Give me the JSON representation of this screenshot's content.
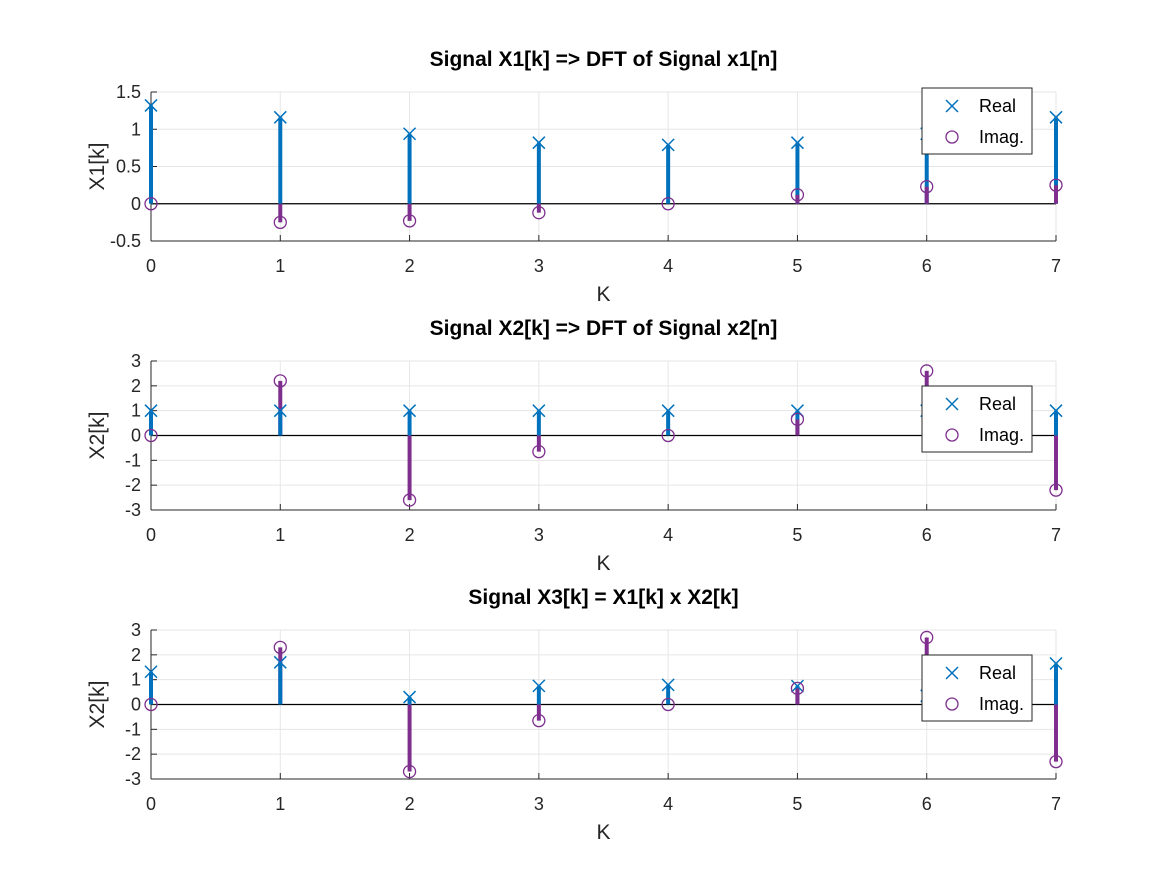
{
  "chart_data": [
    {
      "type": "stem",
      "title": "Signal X1[k] => DFT of Signal x1[n]",
      "xlabel": "K",
      "ylabel": "X1[k]",
      "xlim": [
        0,
        7
      ],
      "ylim": [
        -0.5,
        1.5
      ],
      "xticks": [
        "0",
        "1",
        "2",
        "3",
        "4",
        "5",
        "6",
        "7"
      ],
      "yticks": [
        "-0.5",
        "0",
        "0.5",
        "1",
        "1.5"
      ],
      "ytick_values": [
        -0.5,
        0,
        0.5,
        1,
        1.5
      ],
      "grid": true,
      "legend": {
        "location": "top-right",
        "entries": [
          "Real",
          "Imag."
        ]
      },
      "x": [
        0,
        1,
        2,
        3,
        4,
        5,
        6,
        7
      ],
      "series": [
        {
          "name": "Real",
          "marker": "x",
          "color": "#0072BD",
          "values": [
            1.32,
            1.16,
            0.94,
            0.82,
            0.79,
            0.82,
            0.94,
            1.16
          ]
        },
        {
          "name": "Imag.",
          "marker": "o",
          "color": "#7E2F8E",
          "values": [
            0.0,
            -0.25,
            -0.23,
            -0.12,
            0.0,
            0.12,
            0.23,
            0.25
          ]
        }
      ]
    },
    {
      "type": "stem",
      "title": "Signal X2[k] => DFT of Signal x2[n]",
      "xlabel": "K",
      "ylabel": "X2[k]",
      "xlim": [
        0,
        7
      ],
      "ylim": [
        -3,
        3
      ],
      "xticks": [
        "0",
        "1",
        "2",
        "3",
        "4",
        "5",
        "6",
        "7"
      ],
      "yticks": [
        "-3",
        "-2",
        "-1",
        "0",
        "1",
        "2",
        "3"
      ],
      "ytick_values": [
        -3,
        -2,
        -1,
        0,
        1,
        2,
        3
      ],
      "grid": true,
      "legend": {
        "location": "right",
        "entries": [
          "Real",
          "Imag."
        ]
      },
      "x": [
        0,
        1,
        2,
        3,
        4,
        5,
        6,
        7
      ],
      "series": [
        {
          "name": "Real",
          "marker": "x",
          "color": "#0072BD",
          "values": [
            1,
            1,
            1,
            1,
            1,
            1,
            1,
            1
          ]
        },
        {
          "name": "Imag.",
          "marker": "o",
          "color": "#7E2F8E",
          "values": [
            0,
            2.2,
            -2.6,
            -0.65,
            0,
            0.65,
            2.6,
            -2.2
          ]
        }
      ]
    },
    {
      "type": "stem",
      "title": "Signal X3[k] = X1[k] x X2[k]",
      "xlabel": "K",
      "ylabel": "X2[k]",
      "xlim": [
        0,
        7
      ],
      "ylim": [
        -3,
        3
      ],
      "xticks": [
        "0",
        "1",
        "2",
        "3",
        "4",
        "5",
        "6",
        "7"
      ],
      "yticks": [
        "-3",
        "-2",
        "-1",
        "0",
        "1",
        "2",
        "3"
      ],
      "ytick_values": [
        -3,
        -2,
        -1,
        0,
        1,
        2,
        3
      ],
      "grid": true,
      "legend": {
        "location": "right",
        "entries": [
          "Real",
          "Imag."
        ]
      },
      "x": [
        0,
        1,
        2,
        3,
        4,
        5,
        6,
        7
      ],
      "series": [
        {
          "name": "Real",
          "marker": "x",
          "color": "#0072BD",
          "values": [
            1.32,
            1.7,
            0.3,
            0.75,
            0.79,
            0.74,
            0.35,
            1.65
          ]
        },
        {
          "name": "Imag.",
          "marker": "o",
          "color": "#7E2F8E",
          "values": [
            0,
            2.3,
            -2.7,
            -0.65,
            0,
            0.65,
            2.7,
            -2.3
          ]
        }
      ]
    }
  ]
}
